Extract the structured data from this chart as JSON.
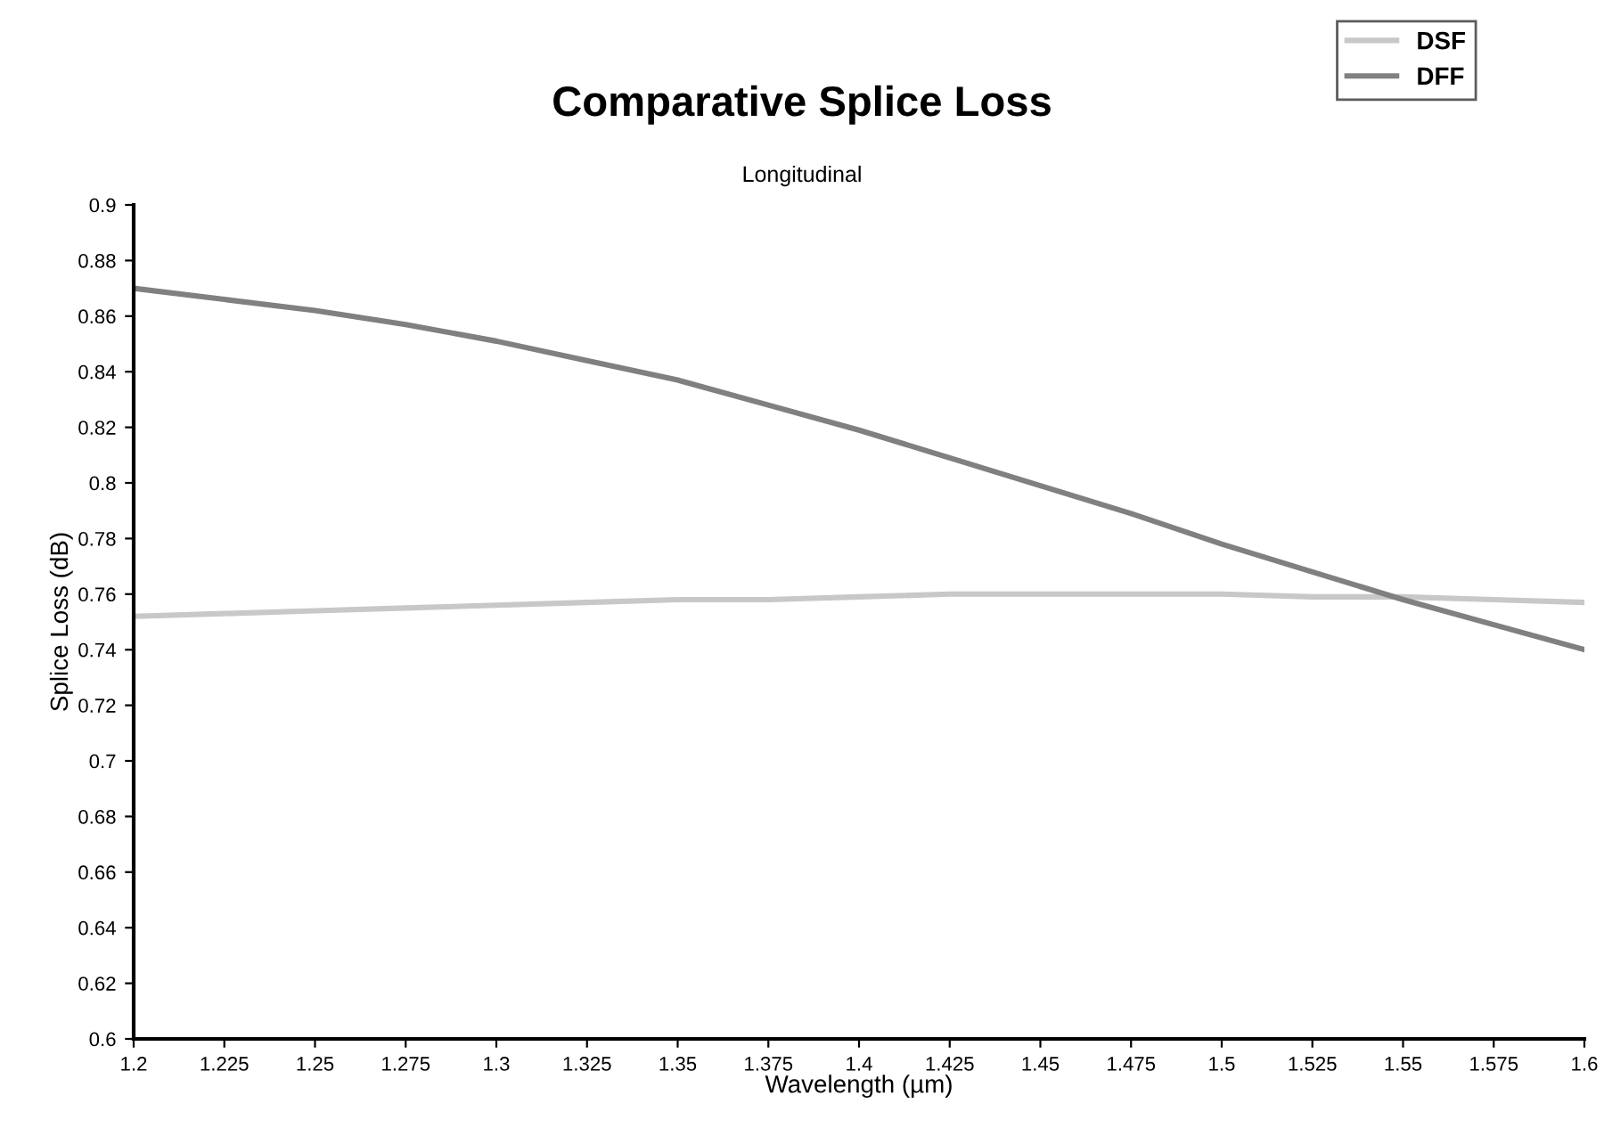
{
  "chart_data": {
    "type": "line",
    "title": "Comparative Splice Loss",
    "subtitle": "Longitudinal",
    "xlabel": "Wavelength (µm)",
    "ylabel": "Splice Loss (dB)",
    "x": [
      1.2,
      1.225,
      1.25,
      1.275,
      1.3,
      1.325,
      1.35,
      1.375,
      1.4,
      1.425,
      1.45,
      1.475,
      1.5,
      1.525,
      1.55,
      1.575,
      1.6
    ],
    "series": [
      {
        "name": "DSF",
        "color": "#c8c8c8",
        "values": [
          0.752,
          0.753,
          0.754,
          0.755,
          0.756,
          0.757,
          0.758,
          0.758,
          0.759,
          0.76,
          0.76,
          0.76,
          0.76,
          0.759,
          0.759,
          0.758,
          0.757
        ]
      },
      {
        "name": "DFF",
        "color": "#808080",
        "values": [
          0.87,
          0.866,
          0.862,
          0.857,
          0.851,
          0.844,
          0.837,
          0.828,
          0.819,
          0.809,
          0.799,
          0.789,
          0.778,
          0.768,
          0.758,
          0.749,
          0.74
        ]
      }
    ],
    "xlim": [
      1.2,
      1.6
    ],
    "xticks": [
      1.2,
      1.225,
      1.25,
      1.275,
      1.3,
      1.325,
      1.35,
      1.375,
      1.4,
      1.425,
      1.45,
      1.475,
      1.5,
      1.525,
      1.55,
      1.575,
      1.6
    ],
    "ylim": [
      0.6,
      0.9
    ],
    "yticks": [
      0.6,
      0.62,
      0.64,
      0.66,
      0.68,
      0.7,
      0.72,
      0.74,
      0.76,
      0.78,
      0.8,
      0.82,
      0.84,
      0.86,
      0.88,
      0.9
    ],
    "grid": false,
    "legend": "top right",
    "marker": "none",
    "line_style": "solid"
  }
}
